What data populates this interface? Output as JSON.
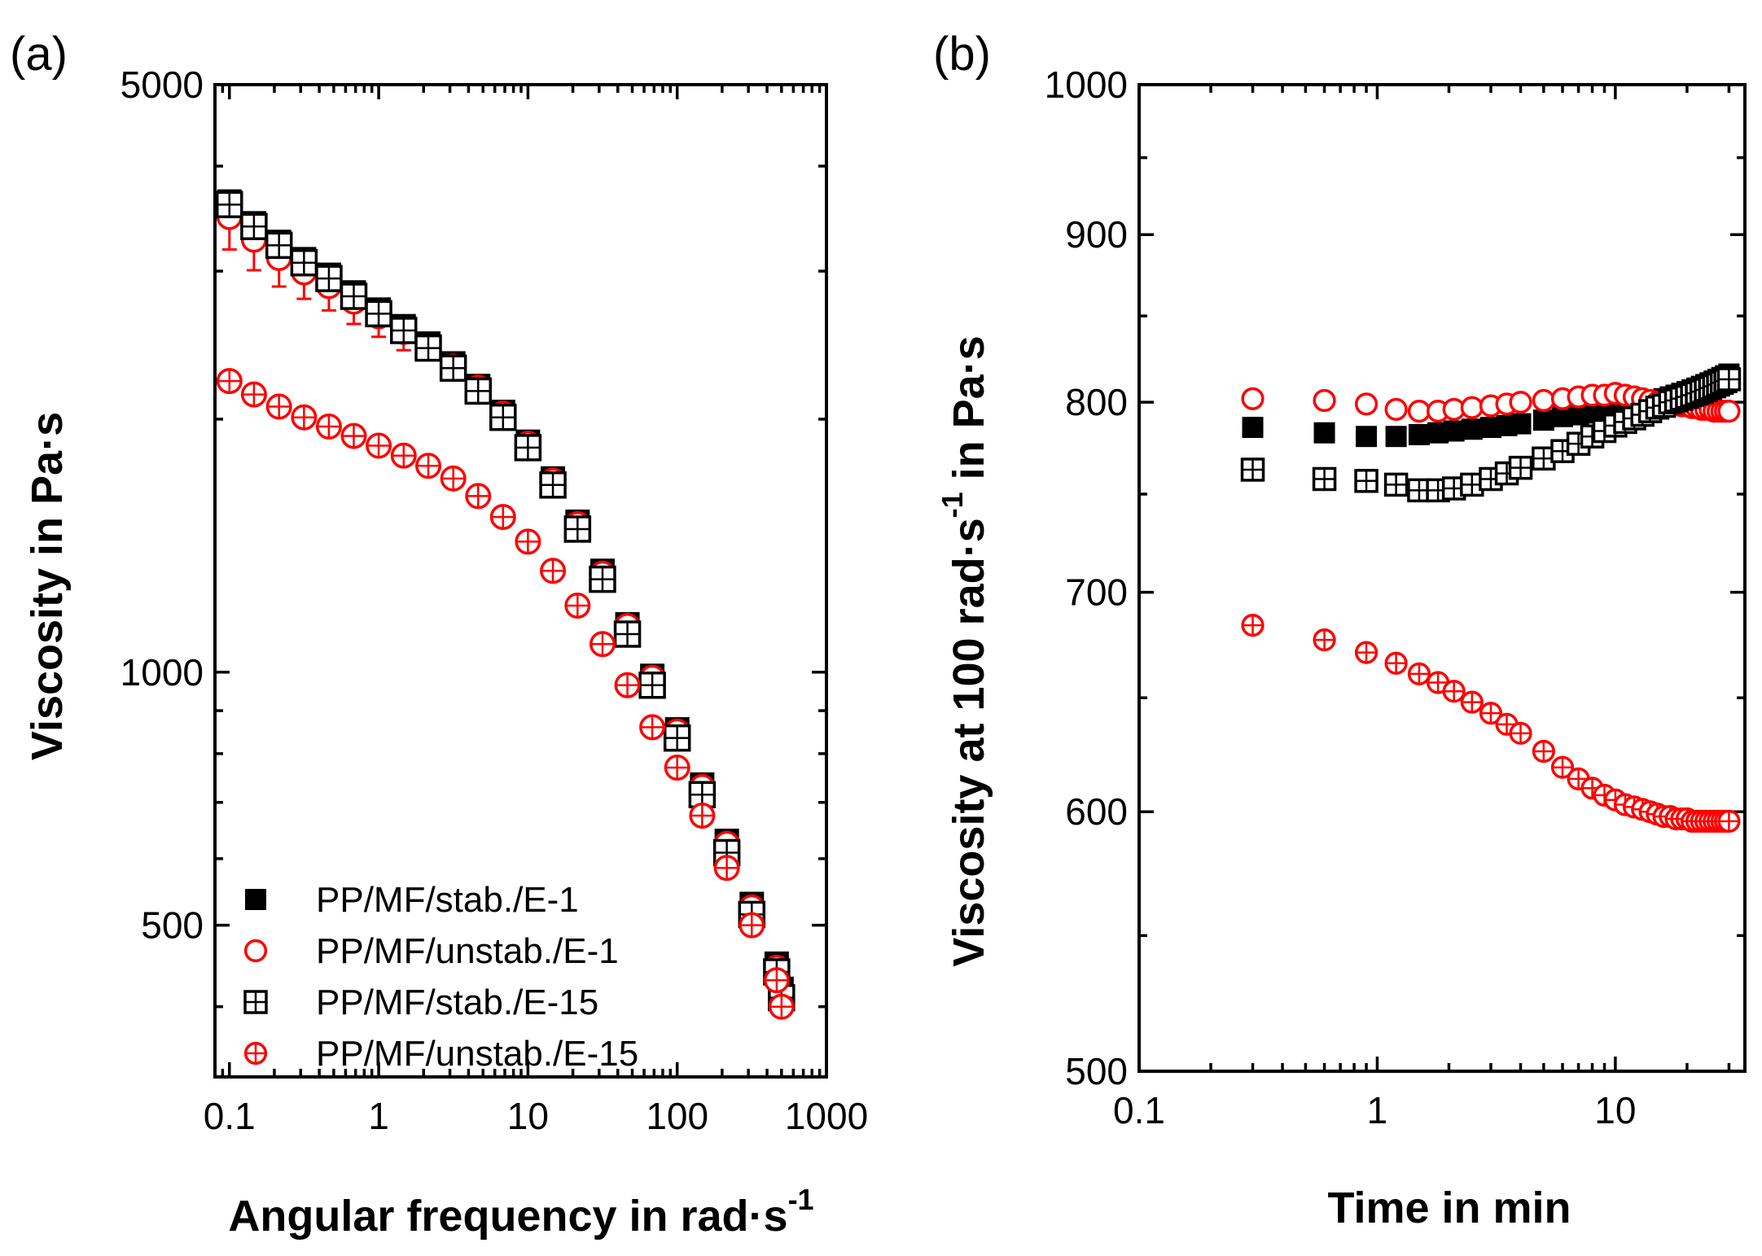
{
  "chart_data": [
    {
      "type": "scatter",
      "panel_label": "(a)",
      "xlabel": "Angular frequency in rad·s",
      "xlabel_sup": "-1",
      "ylabel": "Viscosity in Pa·s",
      "xscale": "log",
      "yscale": "log",
      "xlim": [
        0.08,
        1000
      ],
      "ylim": [
        330,
        5000
      ],
      "x_ticks": [
        {
          "value": 0.1,
          "label": "0.1"
        },
        {
          "value": 1,
          "label": "1"
        },
        {
          "value": 10,
          "label": "10"
        },
        {
          "value": 100,
          "label": "100"
        },
        {
          "value": 1000,
          "label": "1000"
        }
      ],
      "y_ticks": [
        {
          "value": 500,
          "label": "500"
        },
        {
          "value": 1000,
          "label": "1000"
        },
        {
          "value": 5000,
          "label": "5000"
        }
      ],
      "legend_position": "bottom-left",
      "x": [
        0.1,
        0.146,
        0.215,
        0.316,
        0.464,
        0.681,
        1,
        1.47,
        2.15,
        3.16,
        4.64,
        6.81,
        10,
        14.7,
        21.5,
        31.6,
        46.4,
        68.1,
        100,
        147,
        215,
        316,
        464,
        500
      ],
      "series": [
        {
          "name": "PP/MF/stab./E-1",
          "marker": "filled-square",
          "color": "#000000",
          "values": [
            3630,
            3420,
            3250,
            3100,
            2970,
            2830,
            2700,
            2580,
            2460,
            2330,
            2190,
            2040,
            1880,
            1700,
            1510,
            1320,
            1140,
            990,
            855,
            735,
            630,
            530,
            450,
            420
          ]
        },
        {
          "name": "PP/MF/unstab./E-1",
          "marker": "open-circle",
          "color": "#ff0000",
          "values": [
            3480,
            3270,
            3110,
            2990,
            2880,
            2760,
            2650,
            2540,
            2430,
            2310,
            2180,
            2030,
            1870,
            1690,
            1500,
            1310,
            1135,
            985,
            850,
            730,
            625,
            525,
            445,
            415
          ]
        },
        {
          "name": "PP/MF/stab./E-15",
          "marker": "crossed-square",
          "color": "#000000",
          "values": [
            3600,
            3390,
            3220,
            3070,
            2940,
            2800,
            2670,
            2550,
            2430,
            2300,
            2160,
            2010,
            1850,
            1670,
            1480,
            1290,
            1110,
            965,
            835,
            715,
            610,
            515,
            440,
            410
          ]
        },
        {
          "name": "PP/MF/unstab./E-15",
          "marker": "crossed-circle",
          "color": "#ff0000",
          "values": [
            2220,
            2140,
            2070,
            2010,
            1960,
            1910,
            1860,
            1810,
            1760,
            1700,
            1620,
            1530,
            1430,
            1320,
            1200,
            1080,
            965,
            860,
            770,
            675,
            585,
            500,
            430,
            400
          ]
        }
      ]
    },
    {
      "type": "scatter",
      "panel_label": "(b)",
      "xlabel": "Time in min",
      "ylabel": "Viscosity at 100 rad·s",
      "ylabel_sup": "-1",
      "ylabel_suffix": " in Pa·s",
      "xscale": "log",
      "yscale": "log",
      "xlim": [
        0.1,
        35
      ],
      "ylim": [
        500,
        1000
      ],
      "x_ticks": [
        {
          "value": 0.1,
          "label": "0.1"
        },
        {
          "value": 1,
          "label": "1"
        },
        {
          "value": 10,
          "label": "10"
        }
      ],
      "y_ticks": [
        {
          "value": 500,
          "label": "500"
        },
        {
          "value": 600,
          "label": "600"
        },
        {
          "value": 700,
          "label": "700"
        },
        {
          "value": 800,
          "label": "800"
        },
        {
          "value": 900,
          "label": "900"
        },
        {
          "value": 1000,
          "label": "1000"
        }
      ],
      "x": [
        0.3,
        0.6,
        0.9,
        1.2,
        1.5,
        1.8,
        2.1,
        2.5,
        3,
        3.5,
        4,
        5,
        6,
        7,
        8,
        9,
        10,
        11,
        12,
        13,
        14,
        15,
        16,
        17,
        18,
        19,
        20,
        21,
        22,
        23,
        24,
        25,
        26,
        27,
        28,
        29,
        30
      ],
      "series": [
        {
          "name": "PP/MF/stab./E-1",
          "marker": "filled-square",
          "color": "#000000",
          "values": [
            786,
            783,
            781,
            781,
            782,
            783,
            784,
            785,
            786,
            787,
            788,
            790,
            792,
            793,
            794,
            795,
            796,
            797,
            798,
            799,
            800,
            801,
            802,
            803,
            804,
            805,
            806,
            807,
            808,
            809,
            810,
            811,
            812,
            813,
            814,
            815,
            816
          ]
        },
        {
          "name": "PP/MF/unstab./E-1",
          "marker": "open-circle",
          "color": "#ff0000",
          "values": [
            802,
            801,
            799,
            796,
            795,
            795,
            796,
            797,
            798,
            799,
            800,
            801,
            802,
            803,
            804,
            804,
            805,
            804,
            803,
            802,
            801,
            800,
            800,
            799,
            799,
            798,
            798,
            797,
            797,
            796,
            796,
            796,
            795,
            795,
            795,
            795,
            795
          ]
        },
        {
          "name": "PP/MF/stab./E-15",
          "marker": "crossed-square",
          "color": "#000000",
          "values": [
            763,
            758,
            757,
            755,
            752,
            752,
            753,
            755,
            758,
            761,
            764,
            769,
            773,
            777,
            781,
            784,
            787,
            789,
            791,
            793,
            795,
            797,
            798,
            800,
            801,
            802,
            803,
            804,
            805,
            806,
            807,
            808,
            809,
            810,
            811,
            812,
            813
          ]
        },
        {
          "name": "PP/MF/unstab./E-15",
          "marker": "crossed-circle",
          "color": "#ff0000",
          "values": [
            684,
            677,
            671,
            666,
            661,
            657,
            653,
            648,
            643,
            638,
            634,
            626,
            619,
            614,
            610,
            607,
            605,
            603,
            602,
            601,
            600,
            599,
            598,
            598,
            597,
            597,
            597,
            596,
            596,
            596,
            596,
            596,
            596,
            596,
            596,
            596,
            596
          ]
        }
      ]
    }
  ]
}
